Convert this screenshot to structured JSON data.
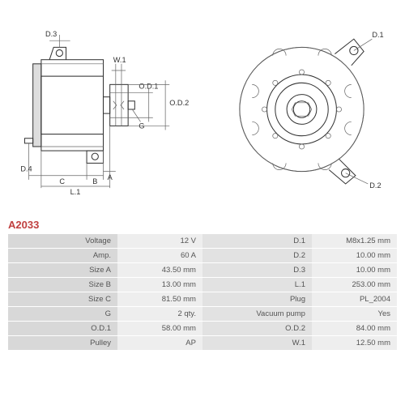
{
  "partNumber": "A2033",
  "partColor": "#c04040",
  "diagrams": {
    "side": {
      "labels": {
        "d3": "D.3",
        "w1": "W.1",
        "od1": "O.D.1",
        "od2": "O.D.2",
        "g": "G",
        "a": "A",
        "b": "B",
        "c": "C",
        "d4": "D.4",
        "l1": "L.1"
      }
    },
    "front": {
      "labels": {
        "d1": "D.1",
        "d2": "D.2"
      }
    }
  },
  "table": {
    "rows": [
      {
        "l1": "Voltage",
        "v1": "12 V",
        "l2": "D.1",
        "v2": "M8x1.25 mm"
      },
      {
        "l1": "Amp.",
        "v1": "60 A",
        "l2": "D.2",
        "v2": "10.00 mm"
      },
      {
        "l1": "Size A",
        "v1": "43.50 mm",
        "l2": "D.3",
        "v2": "10.00 mm"
      },
      {
        "l1": "Size B",
        "v1": "13.00 mm",
        "l2": "L.1",
        "v2": "253.00 mm"
      },
      {
        "l1": "Size C",
        "v1": "81.50 mm",
        "l2": "Plug",
        "v2": "PL_2004"
      },
      {
        "l1": "G",
        "v1": "2 qty.",
        "l2": "Vacuum pump",
        "v2": "Yes"
      },
      {
        "l1": "O.D.1",
        "v1": "58.00 mm",
        "l2": "O.D.2",
        "v2": "84.00 mm"
      },
      {
        "l1": "Pulley",
        "v1": "AP",
        "l2": "W.1",
        "v2": "12.50 mm"
      }
    ]
  },
  "styling": {
    "bgLabel": "#d8d8d8",
    "bgLabel2": "#e2e2e2",
    "bgVal": "#eeeeee",
    "fontSize": 9.5,
    "textColor": "#555555"
  }
}
